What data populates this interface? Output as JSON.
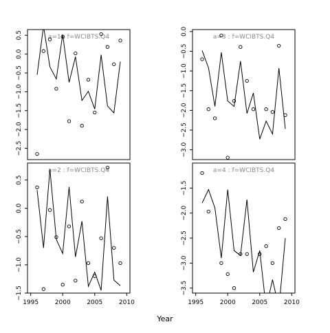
{
  "chart_data": {
    "type": "line",
    "xlabel": "Year",
    "x_ticks": [
      1995,
      2000,
      2005,
      2010
    ],
    "xlim": [
      1994.5,
      2010.5
    ],
    "panels": [
      {
        "title": "a=1 :  f=WCIBTS.Q4",
        "ylim": [
          -2.8,
          0.65
        ],
        "y_ticks": [
          -2.5,
          -2.0,
          -1.5,
          -1.0,
          -0.5,
          0.0,
          0.5
        ],
        "x_tick_labels_shown": false,
        "observed": [
          [
            1996,
            -2.65
          ],
          [
            1997,
            0.08
          ],
          [
            1998,
            0.39
          ],
          [
            1999,
            -0.92
          ],
          [
            2000,
            0.46
          ],
          [
            2001,
            -1.78
          ],
          [
            2002,
            0.02
          ],
          [
            2003,
            -1.9
          ],
          [
            2004,
            -0.68
          ],
          [
            2005,
            -1.55
          ],
          [
            2006,
            0.53
          ],
          [
            2007,
            0.19
          ],
          [
            2008,
            -0.27
          ],
          [
            2009,
            0.36
          ]
        ],
        "fitted": [
          [
            1996,
            -0.55
          ],
          [
            1997,
            0.74
          ],
          [
            1998,
            -0.34
          ],
          [
            1999,
            -0.66
          ],
          [
            2000,
            0.52
          ],
          [
            2001,
            -0.75
          ],
          [
            2002,
            -0.07
          ],
          [
            2003,
            -1.23
          ],
          [
            2004,
            -0.99
          ],
          [
            2005,
            -1.46
          ],
          [
            2006,
            -0.02
          ],
          [
            2007,
            -1.38
          ],
          [
            2008,
            -1.56
          ],
          [
            2009,
            -0.2
          ]
        ]
      },
      {
        "title": "a=3 :  f=WCIBTS.Q4",
        "ylim": [
          -3.25,
          0.05
        ],
        "y_ticks": [
          -3.0,
          -2.5,
          -2.0,
          -1.5,
          -1.0,
          -0.5,
          0.0
        ],
        "x_tick_labels_shown": false,
        "observed": [
          [
            1996,
            -0.7
          ],
          [
            1997,
            -1.97
          ],
          [
            1998,
            -2.2
          ],
          [
            1999,
            -0.1
          ],
          [
            2000,
            -3.2
          ],
          [
            2001,
            -1.76
          ],
          [
            2002,
            -0.39
          ],
          [
            2003,
            -1.25
          ],
          [
            2004,
            -1.97
          ],
          [
            2006,
            -1.97
          ],
          [
            2007,
            -2.04
          ],
          [
            2008,
            -0.36
          ],
          [
            2009,
            -2.12
          ]
        ],
        "fitted": [
          [
            1996,
            -0.48
          ],
          [
            1997,
            -0.92
          ],
          [
            1998,
            -1.9
          ],
          [
            1999,
            -0.53
          ],
          [
            2000,
            -1.76
          ],
          [
            2001,
            -1.9
          ],
          [
            2002,
            -0.75
          ],
          [
            2003,
            -2.08
          ],
          [
            2004,
            -1.56
          ],
          [
            2005,
            -2.73
          ],
          [
            2006,
            -2.27
          ],
          [
            2007,
            -2.6
          ],
          [
            2008,
            -0.93
          ],
          [
            2009,
            -2.47
          ]
        ]
      },
      {
        "title": "a=2 :  f=WCIBTS.Q4",
        "ylim": [
          -1.5,
          0.8
        ],
        "y_ticks": [
          -1.5,
          -1.0,
          -0.5,
          0.0,
          0.5
        ],
        "x_tick_labels_shown": true,
        "observed": [
          [
            1996,
            0.37
          ],
          [
            1997,
            -1.43
          ],
          [
            1998,
            -0.03
          ],
          [
            1999,
            -0.51
          ],
          [
            2000,
            -1.35
          ],
          [
            2001,
            -0.32
          ],
          [
            2002,
            -1.28
          ],
          [
            2003,
            0.12
          ],
          [
            2004,
            -0.97
          ],
          [
            2005,
            -1.2
          ],
          [
            2006,
            -0.53
          ],
          [
            2007,
            0.72
          ],
          [
            2008,
            -0.7
          ],
          [
            2009,
            -0.97
          ]
        ],
        "fitted": [
          [
            1996,
            0.32
          ],
          [
            1997,
            -0.7
          ],
          [
            1998,
            0.69
          ],
          [
            1999,
            -0.55
          ],
          [
            2000,
            -0.8
          ],
          [
            2001,
            0.38
          ],
          [
            2002,
            -0.86
          ],
          [
            2003,
            -0.23
          ],
          [
            2004,
            -1.38
          ],
          [
            2005,
            -1.13
          ],
          [
            2006,
            -1.45
          ],
          [
            2007,
            0.21
          ],
          [
            2008,
            -1.27
          ],
          [
            2009,
            -1.37
          ]
        ]
      },
      {
        "title": "a=4 :  f=WCIBTS.Q4",
        "ylim": [
          -3.6,
          -1.0
        ],
        "y_ticks": [
          -3.5,
          -3.0,
          -2.5,
          -2.0,
          -1.5
        ],
        "x_tick_labels_shown": true,
        "observed": [
          [
            1996,
            -1.2
          ],
          [
            1997,
            -1.97
          ],
          [
            1999,
            -3.0
          ],
          [
            2000,
            -3.22
          ],
          [
            2001,
            -3.5
          ],
          [
            2002,
            -2.82
          ],
          [
            2003,
            -2.82
          ],
          [
            2005,
            -2.82
          ],
          [
            2006,
            -2.66
          ],
          [
            2007,
            -3.0
          ],
          [
            2008,
            -2.3
          ],
          [
            2009,
            -2.12
          ]
        ],
        "fitted": [
          [
            1996,
            -1.8
          ],
          [
            1997,
            -1.53
          ],
          [
            1998,
            -1.9
          ],
          [
            1999,
            -2.9
          ],
          [
            2000,
            -1.53
          ],
          [
            2001,
            -2.75
          ],
          [
            2002,
            -2.85
          ],
          [
            2003,
            -1.73
          ],
          [
            2004,
            -3.18
          ],
          [
            2005,
            -2.75
          ],
          [
            2006,
            -3.9
          ],
          [
            2007,
            -3.33
          ],
          [
            2008,
            -3.9
          ],
          [
            2009,
            -2.5
          ]
        ]
      }
    ]
  }
}
